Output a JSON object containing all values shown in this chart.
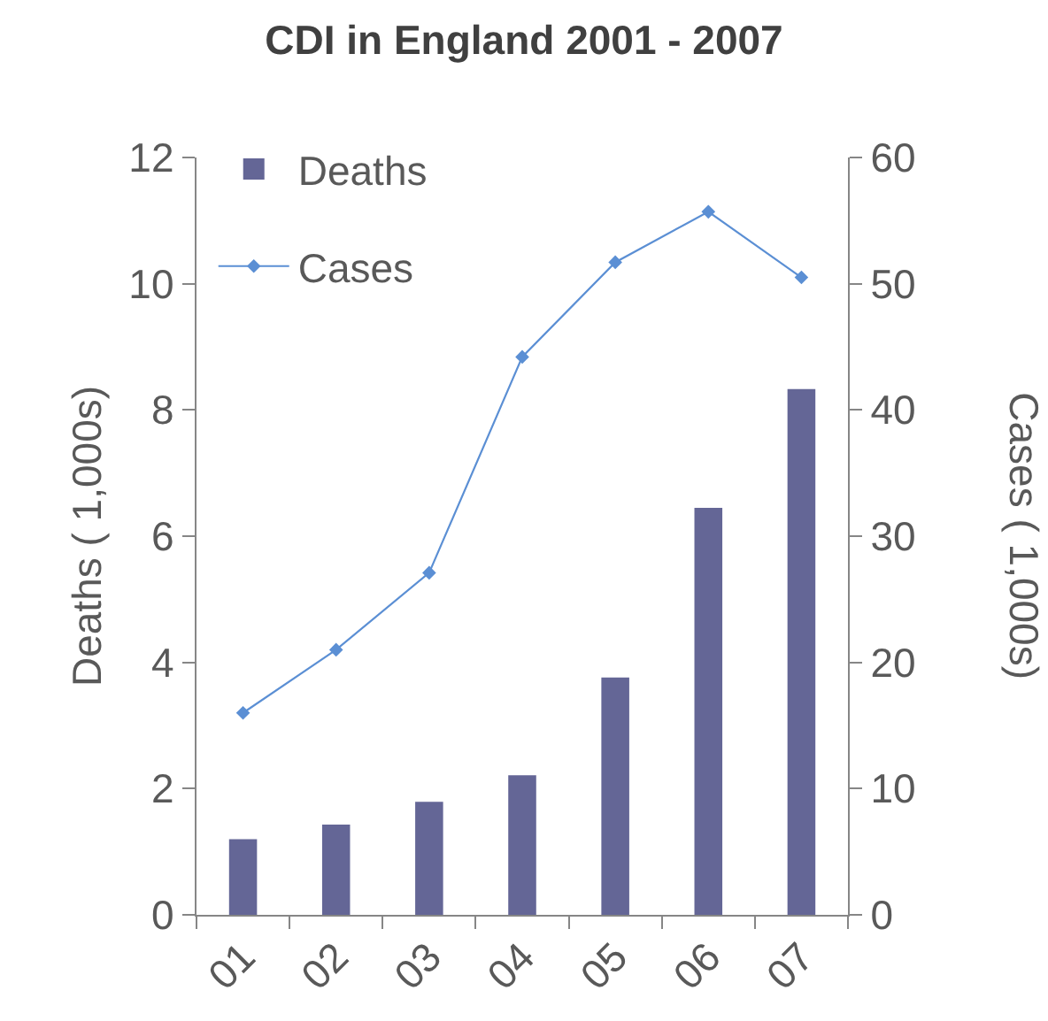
{
  "chart_data": {
    "type": "bar",
    "title": "CDI in England 2001 - 2007",
    "ylabel": "Deaths ( 1,000s)",
    "y2label": "Cases ( 1,000s)",
    "categories": [
      "01",
      "02",
      "03",
      "04",
      "05",
      "06",
      "07"
    ],
    "series": [
      {
        "name": "Deaths",
        "color": "#646696",
        "values": [
          1.2,
          1.43,
          1.79,
          2.21,
          3.76,
          6.45,
          8.33
        ]
      },
      {
        "name": "Cases",
        "type": "line",
        "axis": "y2",
        "color": "#5b8fd4",
        "values": [
          16.0,
          21.0,
          27.1,
          44.2,
          51.7,
          55.7,
          50.5
        ]
      }
    ],
    "ylim": [
      0,
      12
    ],
    "yticks": [
      0,
      2,
      4,
      6,
      8,
      10,
      12
    ],
    "y2lim": [
      0,
      60
    ],
    "y2ticks": [
      0,
      10,
      20,
      30,
      40,
      50,
      60
    ],
    "grid": false,
    "legend": "top left",
    "marker": "diamond",
    "line_style": "solid"
  }
}
